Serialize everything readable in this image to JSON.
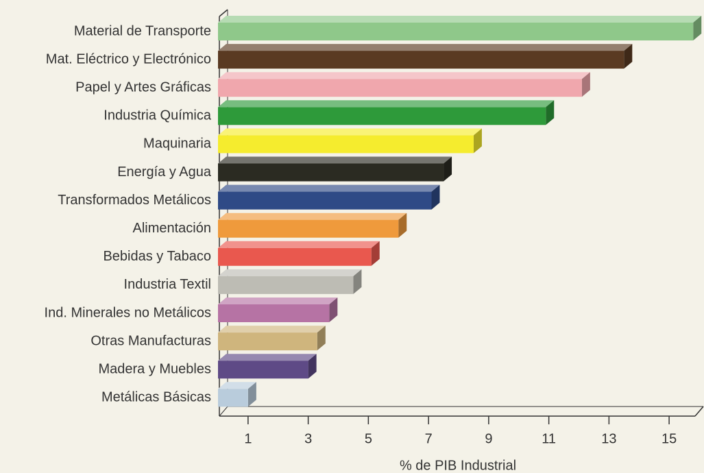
{
  "chart_data": {
    "type": "bar",
    "categories": [
      "Material de Transporte",
      "Mat. Eléctrico y Electrónico",
      "Papel y Artes Gráficas",
      "Industria Química",
      "Maquinaria",
      "Energía y Agua",
      "Transformados Metálicos",
      "Alimentación",
      "Bebidas y Tabaco",
      "Industria Textil",
      "Ind. Minerales no Metálicos",
      "Otras Manufacturas",
      "Madera y Muebles",
      "Metálicas Básicas"
    ],
    "values": [
      15.8,
      13.5,
      12.1,
      10.9,
      8.5,
      7.5,
      7.1,
      6.0,
      5.1,
      4.5,
      3.7,
      3.3,
      3.0,
      1.0
    ],
    "colors": [
      "#8fc88a",
      "#5a3a22",
      "#f0a7ad",
      "#2e9a3a",
      "#f5ec2e",
      "#2b2b22",
      "#2f4a86",
      "#ef9a3c",
      "#e9584e",
      "#bdbcb4",
      "#b673a4",
      "#cfb57d",
      "#5e4a86",
      "#b9ccdc"
    ],
    "xlabel": "% de PIB Industrial",
    "xlim": [
      0,
      16
    ],
    "xticks": [
      1,
      3,
      5,
      7,
      9,
      11,
      13,
      15
    ]
  }
}
